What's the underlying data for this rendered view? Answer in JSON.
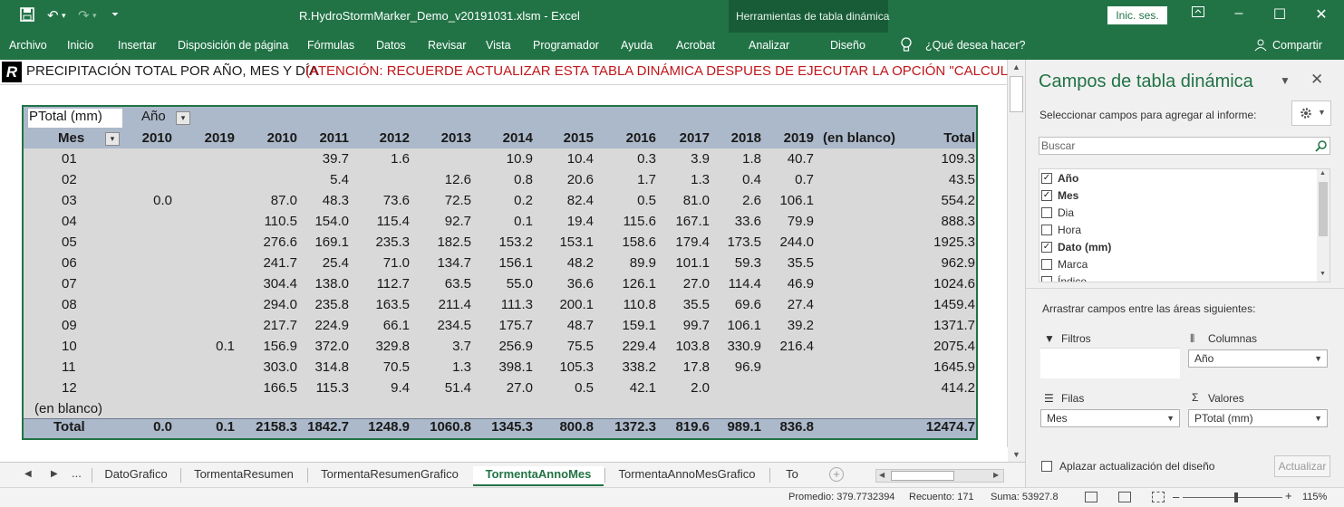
{
  "titlebar": {
    "doc_title": "R.HydroStormMarker_Demo_v20191031.xlsm  -  Excel",
    "tools_label": "Herramientas de tabla dinámica",
    "signin": "Inic. ses."
  },
  "ribbon": {
    "tabs": [
      "Archivo",
      "Inicio",
      "Insertar",
      "Disposición de página",
      "Fórmulas",
      "Datos",
      "Revisar",
      "Vista",
      "Programador",
      "Ayuda",
      "Acrobat",
      "Analizar",
      "Diseño"
    ],
    "tellme": "¿Qué desea hacer?",
    "share": "Compartir"
  },
  "sheet": {
    "logo": "R",
    "title": "PRECIPITACIÓN TOTAL POR AÑO, MES Y DÍA",
    "warning": "(ATENCIÓN: RECUERDE ACTUALIZAR ESTA TABLA DINÁMICA DESPUES DE EJECUTAR LA OPCIÓN \"CALCULAR\")"
  },
  "pivot": {
    "value_field": "PTotal (mm)",
    "column_field": "Año",
    "row_field": "Mes",
    "columns": [
      "2010",
      "2019",
      "2010",
      "2011",
      "2012",
      "2013",
      "2014",
      "2015",
      "2016",
      "2017",
      "2018",
      "2019",
      "(en blanco)",
      "Total"
    ],
    "rows": [
      {
        "label": "01",
        "cells": [
          "",
          "",
          "",
          "39.7",
          "1.6",
          "",
          "10.9",
          "10.4",
          "0.3",
          "3.9",
          "1.8",
          "40.7",
          "",
          "109.3"
        ]
      },
      {
        "label": "02",
        "cells": [
          "",
          "",
          "",
          "5.4",
          "",
          "12.6",
          "0.8",
          "20.6",
          "1.7",
          "1.3",
          "0.4",
          "0.7",
          "",
          "43.5"
        ]
      },
      {
        "label": "03",
        "cells": [
          "0.0",
          "",
          "87.0",
          "48.3",
          "73.6",
          "72.5",
          "0.2",
          "82.4",
          "0.5",
          "81.0",
          "2.6",
          "106.1",
          "",
          "554.2"
        ]
      },
      {
        "label": "04",
        "cells": [
          "",
          "",
          "110.5",
          "154.0",
          "115.4",
          "92.7",
          "0.1",
          "19.4",
          "115.6",
          "167.1",
          "33.6",
          "79.9",
          "",
          "888.3"
        ]
      },
      {
        "label": "05",
        "cells": [
          "",
          "",
          "276.6",
          "169.1",
          "235.3",
          "182.5",
          "153.2",
          "153.1",
          "158.6",
          "179.4",
          "173.5",
          "244.0",
          "",
          "1925.3"
        ]
      },
      {
        "label": "06",
        "cells": [
          "",
          "",
          "241.7",
          "25.4",
          "71.0",
          "134.7",
          "156.1",
          "48.2",
          "89.9",
          "101.1",
          "59.3",
          "35.5",
          "",
          "962.9"
        ]
      },
      {
        "label": "07",
        "cells": [
          "",
          "",
          "304.4",
          "138.0",
          "112.7",
          "63.5",
          "55.0",
          "36.6",
          "126.1",
          "27.0",
          "114.4",
          "46.9",
          "",
          "1024.6"
        ]
      },
      {
        "label": "08",
        "cells": [
          "",
          "",
          "294.0",
          "235.8",
          "163.5",
          "211.4",
          "111.3",
          "200.1",
          "110.8",
          "35.5",
          "69.6",
          "27.4",
          "",
          "1459.4"
        ]
      },
      {
        "label": "09",
        "cells": [
          "",
          "",
          "217.7",
          "224.9",
          "66.1",
          "234.5",
          "175.7",
          "48.7",
          "159.1",
          "99.7",
          "106.1",
          "39.2",
          "",
          "1371.7"
        ]
      },
      {
        "label": "10",
        "cells": [
          "",
          "0.1",
          "156.9",
          "372.0",
          "329.8",
          "3.7",
          "256.9",
          "75.5",
          "229.4",
          "103.8",
          "330.9",
          "216.4",
          "",
          "2075.4"
        ]
      },
      {
        "label": "11",
        "cells": [
          "",
          "",
          "303.0",
          "314.8",
          "70.5",
          "1.3",
          "398.1",
          "105.3",
          "338.2",
          "17.8",
          "96.9",
          "",
          "",
          "1645.9"
        ]
      },
      {
        "label": "12",
        "cells": [
          "",
          "",
          "166.5",
          "115.3",
          "9.4",
          "51.4",
          "27.0",
          "0.5",
          "42.1",
          "2.0",
          "",
          "",
          "",
          "414.2"
        ]
      },
      {
        "label": "(en blanco)",
        "cells": [
          "",
          "",
          "",
          "",
          "",
          "",
          "",
          "",
          "",
          "",
          "",
          "",
          "",
          ""
        ]
      }
    ],
    "total": {
      "label": "Total",
      "cells": [
        "0.0",
        "0.1",
        "2158.3",
        "1842.7",
        "1248.9",
        "1060.8",
        "1345.3",
        "800.8",
        "1372.3",
        "819.6",
        "989.1",
        "836.8",
        "",
        "12474.7"
      ]
    }
  },
  "sheet_tabs": {
    "more": "...",
    "tabs": [
      "DatoGrafico",
      "TormentaResumen",
      "TormentaResumenGrafico",
      "TormentaAnnoMes",
      "TormentaAnnoMesGrafico",
      "To"
    ],
    "active": "TormentaAnnoMes"
  },
  "panel": {
    "title": "Campos de tabla dinámica",
    "subtitle": "Seleccionar campos para agregar al informe:",
    "search_placeholder": "Buscar",
    "fields": [
      {
        "label": "Año",
        "checked": "✓"
      },
      {
        "label": "Mes",
        "checked": "✓"
      },
      {
        "label": "Dia",
        "checked": ""
      },
      {
        "label": "Hora",
        "checked": ""
      },
      {
        "label": "Dato (mm)",
        "checked": "✓"
      },
      {
        "label": "Marca",
        "checked": ""
      },
      {
        "label": "Índice",
        "checked": ""
      }
    ],
    "drag_label": "Arrastrar campos entre las áreas siguientes:",
    "zones": {
      "filters": "Filtros",
      "columns": "Columnas",
      "rows": "Filas",
      "values": "Valores",
      "columns_item": "Año",
      "rows_item": "Mes",
      "values_item": "PTotal (mm)"
    },
    "defer": "Aplazar actualización del diseño",
    "update": "Actualizar"
  },
  "status": {
    "average": "Promedio: 379.7732394",
    "count": "Recuento: 171",
    "sum": "Suma: 53927.8",
    "zoom": "115%"
  },
  "colors": {
    "excel_green": "#217346",
    "header_fill": "#acb9ca",
    "body_fill": "#d9d9d9",
    "warning_red": "#c0161a"
  }
}
